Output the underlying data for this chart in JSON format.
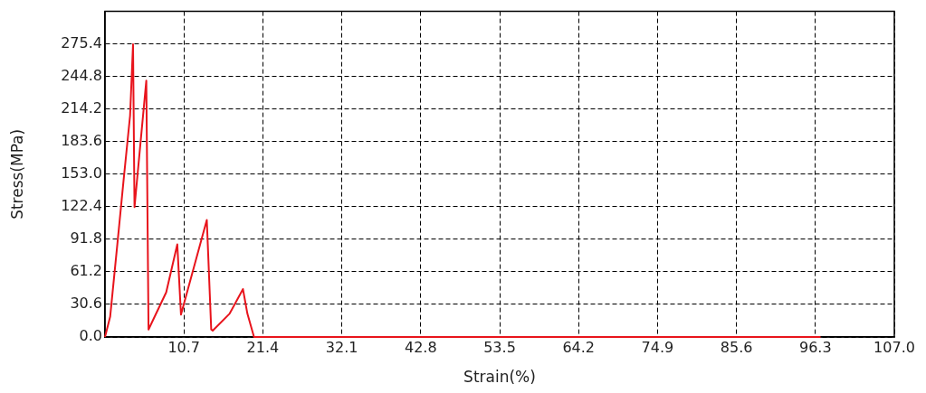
{
  "chart_data": {
    "type": "line",
    "xlabel": "Strain(%)",
    "ylabel": "Stress(MPa)",
    "xlim": [
      0,
      107
    ],
    "ylim": [
      0,
      306
    ],
    "xticks": [
      10.7,
      21.4,
      32.1,
      42.8,
      53.5,
      64.2,
      74.9,
      85.6,
      96.3,
      {
        "value": 107,
        "label": "107.0"
      }
    ],
    "yticks": [
      {
        "value": 0,
        "label": "0.0"
      },
      30.6,
      61.2,
      91.8,
      122.4,
      {
        "value": 153,
        "label": "153.0"
      },
      183.6,
      214.2,
      244.8,
      275.4
    ],
    "grid": true,
    "line_style": "solid",
    "marker": "none",
    "legend": false,
    "series": [
      {
        "color": "#e8141c",
        "x": [
          0,
          0.7,
          1.7,
          2.5,
          3.4,
          3.8,
          4.0,
          5.6,
          5.9,
          8.3,
          9.8,
          10.3,
          13.8,
          14.4,
          14.6,
          16.9,
          18.7,
          19.3,
          20.2,
          97
        ],
        "values": [
          0,
          19,
          89,
          146,
          208,
          275,
          122,
          241,
          7,
          42,
          87,
          21,
          110,
          7,
          6,
          22,
          45,
          22,
          0,
          0
        ]
      }
    ]
  }
}
